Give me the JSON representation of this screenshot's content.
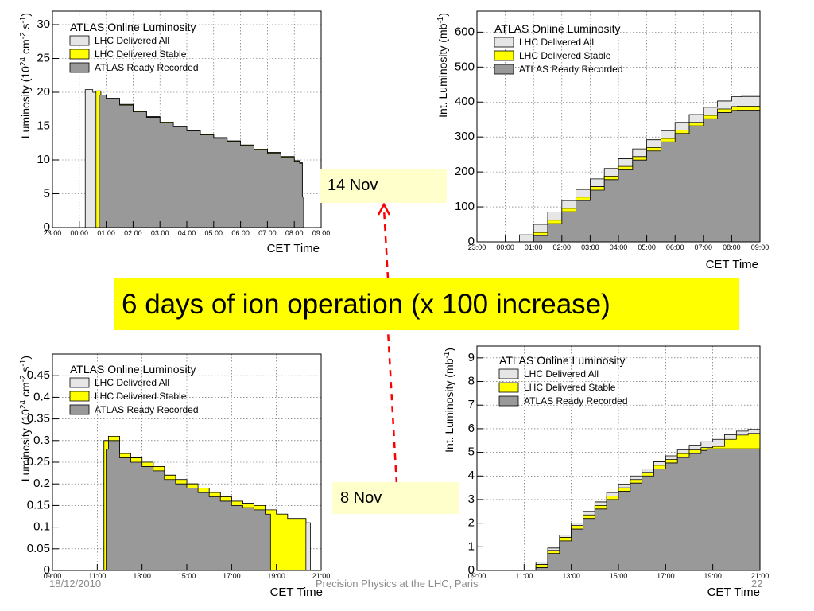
{
  "chart_data": [
    {
      "type": "area",
      "title": "ATLAS Online Luminosity",
      "xlabel": "CET Time",
      "ylabel": "Luminosity (10^24 cm^-2 s^-1)",
      "xlim": [
        23.0,
        33.0
      ],
      "ylim": [
        0,
        32
      ],
      "y_ticks": [
        "0",
        "5",
        "10",
        "15",
        "20",
        "25",
        "30"
      ],
      "x_ticks": [
        "23:00",
        "00:00",
        "01:00",
        "02:00",
        "03:00",
        "04:00",
        "05:00",
        "06:00",
        "07:00",
        "08:00",
        "09:00"
      ],
      "legend": [
        "LHC Delivered All",
        "LHC Delivered Stable",
        "ATLAS Ready Recorded"
      ],
      "legend_placement": "top-left",
      "grid": true,
      "series": [
        {
          "name": "LHC Delivered All",
          "color": "#e6e6e6",
          "x": [
            24.05,
            24.2,
            24.22,
            24.5,
            24.8,
            25.0,
            25.5,
            26.0,
            26.5,
            27.0,
            27.5,
            28.0,
            28.5,
            29.0,
            29.5,
            30.0,
            30.5,
            31.0,
            31.5,
            32.0,
            32.2,
            32.3,
            32.35
          ],
          "y": [
            0,
            0,
            20.4,
            20.0,
            19.6,
            19.1,
            18.2,
            17.2,
            16.4,
            15.6,
            15.0,
            14.4,
            13.8,
            13.3,
            12.8,
            12.2,
            11.6,
            11.1,
            10.5,
            9.9,
            9.6,
            4.5,
            0
          ]
        },
        {
          "name": "LHC Delivered Stable",
          "color": "#ffff00",
          "x": [
            24.6,
            24.62,
            24.8,
            25.0,
            25.5,
            26.0,
            26.5,
            27.0,
            27.5,
            28.0,
            28.5,
            29.0,
            29.5,
            30.0,
            30.5,
            31.0,
            31.5,
            32.0,
            32.2,
            32.22
          ],
          "y": [
            0,
            20.2,
            19.6,
            19.1,
            18.2,
            17.2,
            16.4,
            15.6,
            15.0,
            14.4,
            13.8,
            13.3,
            12.8,
            12.2,
            11.6,
            11.1,
            10.5,
            9.9,
            9.6,
            0
          ]
        },
        {
          "name": "ATLAS Ready Recorded",
          "color": "#999999",
          "x": [
            24.72,
            24.74,
            25.0,
            25.5,
            26.0,
            26.5,
            27.0,
            27.5,
            28.0,
            28.5,
            29.0,
            29.5,
            30.0,
            30.5,
            31.0,
            31.5,
            32.0,
            32.2,
            32.22,
            32.3,
            32.35
          ],
          "y": [
            0,
            19.6,
            19.0,
            18.1,
            17.1,
            16.3,
            15.5,
            14.9,
            14.3,
            13.7,
            13.2,
            12.7,
            12.1,
            11.5,
            11.0,
            10.4,
            9.8,
            9.5,
            9.5,
            4.5,
            0
          ]
        }
      ]
    },
    {
      "type": "area",
      "title": "ATLAS Online Luminosity",
      "xlabel": "CET Time",
      "ylabel": "Int. Luminosity (mb^-1)",
      "xlim": [
        23.0,
        33.0
      ],
      "ylim": [
        0,
        660
      ],
      "y_ticks": [
        "0",
        "100",
        "200",
        "300",
        "400",
        "500",
        "600"
      ],
      "x_ticks": [
        "23:00",
        "00:00",
        "01:00",
        "02:00",
        "03:00",
        "04:00",
        "05:00",
        "06:00",
        "07:00",
        "08:00",
        "09:00"
      ],
      "legend": [
        "LHC Delivered All",
        "LHC Delivered Stable",
        "ATLAS Ready Recorded"
      ],
      "legend_placement": "top-left",
      "grid": true,
      "series": [
        {
          "name": "LHC Delivered All",
          "color": "#e6e6e6",
          "x": [
            24.2,
            24.5,
            25.0,
            25.5,
            26.0,
            26.5,
            27.0,
            27.5,
            28.0,
            28.5,
            29.0,
            29.5,
            30.0,
            30.5,
            31.0,
            31.5,
            32.0,
            32.35,
            33.0
          ],
          "y": [
            0,
            20,
            50,
            85,
            118,
            150,
            180,
            210,
            238,
            266,
            292,
            318,
            342,
            364,
            385,
            403,
            415,
            416,
            416
          ]
        },
        {
          "name": "LHC Delivered Stable",
          "color": "#ffff00",
          "x": [
            24.6,
            25.0,
            25.5,
            26.0,
            26.5,
            27.0,
            27.5,
            28.0,
            28.5,
            29.0,
            29.5,
            30.0,
            30.5,
            31.0,
            31.5,
            32.0,
            32.2,
            33.0
          ],
          "y": [
            0,
            27,
            62,
            96,
            128,
            158,
            188,
            216,
            244,
            270,
            296,
            320,
            342,
            362,
            380,
            387,
            388,
            388
          ]
        },
        {
          "name": "ATLAS Ready Recorded",
          "color": "#999999",
          "x": [
            24.7,
            25.0,
            25.5,
            26.0,
            26.5,
            27.0,
            27.5,
            28.0,
            28.5,
            29.0,
            29.5,
            30.0,
            30.5,
            31.0,
            31.5,
            32.0,
            32.2,
            33.0
          ],
          "y": [
            0,
            18,
            52,
            86,
            118,
            148,
            178,
            206,
            234,
            260,
            286,
            310,
            332,
            352,
            370,
            376,
            377,
            377
          ]
        }
      ]
    },
    {
      "type": "area",
      "title": "ATLAS Online Luminosity",
      "xlabel": "CET Time",
      "ylabel": "Luminosity (10^24 cm^-2 s^-1)",
      "xlim": [
        9.0,
        21.0
      ],
      "ylim": [
        0,
        0.5
      ],
      "y_ticks": [
        "0",
        "0.05",
        "0.1",
        "0.15",
        "0.2",
        "0.25",
        "0.3",
        "0.35",
        "0.4",
        "0.45"
      ],
      "x_ticks": [
        "09:00",
        "11:00",
        "13:00",
        "15:00",
        "17:00",
        "19:00",
        "21:00"
      ],
      "legend": [
        "LHC Delivered All",
        "LHC Delivered Stable",
        "ATLAS Ready Recorded"
      ],
      "legend_placement": "top-left",
      "grid": true,
      "series": [
        {
          "name": "LHC Delivered All",
          "color": "#e6e6e6",
          "x": [
            11.1,
            11.25,
            11.3,
            11.5,
            12.0,
            12.5,
            13.0,
            13.5,
            14.0,
            14.5,
            15.0,
            15.5,
            16.0,
            16.5,
            17.0,
            17.5,
            18.0,
            18.5,
            19.0,
            19.5,
            20.0,
            20.3,
            20.32,
            20.5,
            20.52
          ],
          "y": [
            0,
            0,
            0.3,
            0.31,
            0.27,
            0.26,
            0.25,
            0.24,
            0.22,
            0.21,
            0.2,
            0.19,
            0.18,
            0.17,
            0.16,
            0.155,
            0.15,
            0.14,
            0.13,
            0.12,
            0.12,
            0.12,
            0.11,
            0.11,
            0
          ]
        },
        {
          "name": "LHC Delivered Stable",
          "color": "#ffff00",
          "x": [
            11.28,
            11.3,
            11.5,
            12.0,
            12.5,
            13.0,
            13.5,
            14.0,
            14.5,
            15.0,
            15.5,
            16.0,
            16.5,
            17.0,
            17.5,
            18.0,
            18.5,
            19.0,
            19.5,
            20.0,
            20.3,
            20.32
          ],
          "y": [
            0,
            0.3,
            0.31,
            0.27,
            0.26,
            0.25,
            0.24,
            0.22,
            0.21,
            0.2,
            0.19,
            0.18,
            0.17,
            0.16,
            0.155,
            0.15,
            0.14,
            0.13,
            0.12,
            0.12,
            0.12,
            0
          ]
        },
        {
          "name": "ATLAS Ready Recorded",
          "color": "#999999",
          "x": [
            11.38,
            11.4,
            11.5,
            12.0,
            12.5,
            13.0,
            13.5,
            14.0,
            14.5,
            15.0,
            15.5,
            16.0,
            16.5,
            17.0,
            17.5,
            18.0,
            18.5,
            18.72,
            18.74
          ],
          "y": [
            0,
            0.28,
            0.3,
            0.26,
            0.25,
            0.24,
            0.23,
            0.21,
            0.2,
            0.19,
            0.18,
            0.17,
            0.16,
            0.15,
            0.145,
            0.14,
            0.13,
            0.13,
            0
          ]
        }
      ]
    },
    {
      "type": "area",
      "title": "ATLAS Online Luminosity",
      "xlabel": "CET Time",
      "ylabel": "Int. Luminosity (mb^-1)",
      "xlim": [
        9.0,
        21.0
      ],
      "ylim": [
        0,
        9.5
      ],
      "y_ticks": [
        "0",
        "1",
        "2",
        "3",
        "4",
        "5",
        "6",
        "7",
        "8",
        "9"
      ],
      "x_ticks": [
        "09:00",
        "11:00",
        "13:00",
        "15:00",
        "17:00",
        "19:00",
        "21:00"
      ],
      "legend": [
        "LHC Delivered All",
        "LHC Delivered Stable",
        "ATLAS Ready Recorded"
      ],
      "legend_placement": "top-left",
      "grid": true,
      "series": [
        {
          "name": "LHC Delivered All",
          "color": "#e6e6e6",
          "x": [
            11.15,
            11.5,
            12.0,
            12.5,
            13.0,
            13.5,
            14.0,
            14.5,
            15.0,
            15.5,
            16.0,
            16.5,
            17.0,
            17.5,
            18.0,
            18.5,
            19.0,
            19.5,
            20.0,
            20.5,
            21.0
          ],
          "y": [
            0,
            0.35,
            0.95,
            1.5,
            2.0,
            2.5,
            2.9,
            3.3,
            3.65,
            4.0,
            4.3,
            4.6,
            4.85,
            5.1,
            5.3,
            5.45,
            5.55,
            5.75,
            5.9,
            5.97,
            5.98
          ]
        },
        {
          "name": "LHC Delivered Stable",
          "color": "#ffff00",
          "x": [
            11.28,
            11.5,
            12.0,
            12.5,
            13.0,
            13.5,
            14.0,
            14.5,
            15.0,
            15.5,
            16.0,
            16.5,
            17.0,
            17.5,
            18.0,
            18.5,
            19.0,
            19.5,
            20.0,
            20.5,
            21.0
          ],
          "y": [
            0,
            0.25,
            0.85,
            1.4,
            1.9,
            2.35,
            2.75,
            3.15,
            3.5,
            3.85,
            4.15,
            4.45,
            4.7,
            4.95,
            5.1,
            5.2,
            5.25,
            5.55,
            5.73,
            5.8,
            5.8
          ]
        },
        {
          "name": "ATLAS Ready Recorded",
          "color": "#999999",
          "x": [
            11.38,
            11.5,
            12.0,
            12.5,
            13.0,
            13.5,
            14.0,
            14.5,
            15.0,
            15.5,
            16.0,
            16.5,
            17.0,
            17.5,
            18.0,
            18.5,
            18.75,
            21.0
          ],
          "y": [
            0,
            0.12,
            0.72,
            1.25,
            1.75,
            2.2,
            2.6,
            3.0,
            3.35,
            3.7,
            4.0,
            4.3,
            4.55,
            4.78,
            4.95,
            5.08,
            5.15,
            5.15
          ]
        }
      ]
    }
  ],
  "annotations": {
    "nov14": "14 Nov",
    "nov8": "8 Nov",
    "banner": "6 days of ion operation (x 100 increase)"
  },
  "footer": {
    "date": "18/12/2010",
    "title": "Precision Physics at the LHC, Paris",
    "page": "22"
  },
  "colors": {
    "arrow": "#ff0000",
    "banner": "#ffff00",
    "note": "#ffffcc"
  }
}
